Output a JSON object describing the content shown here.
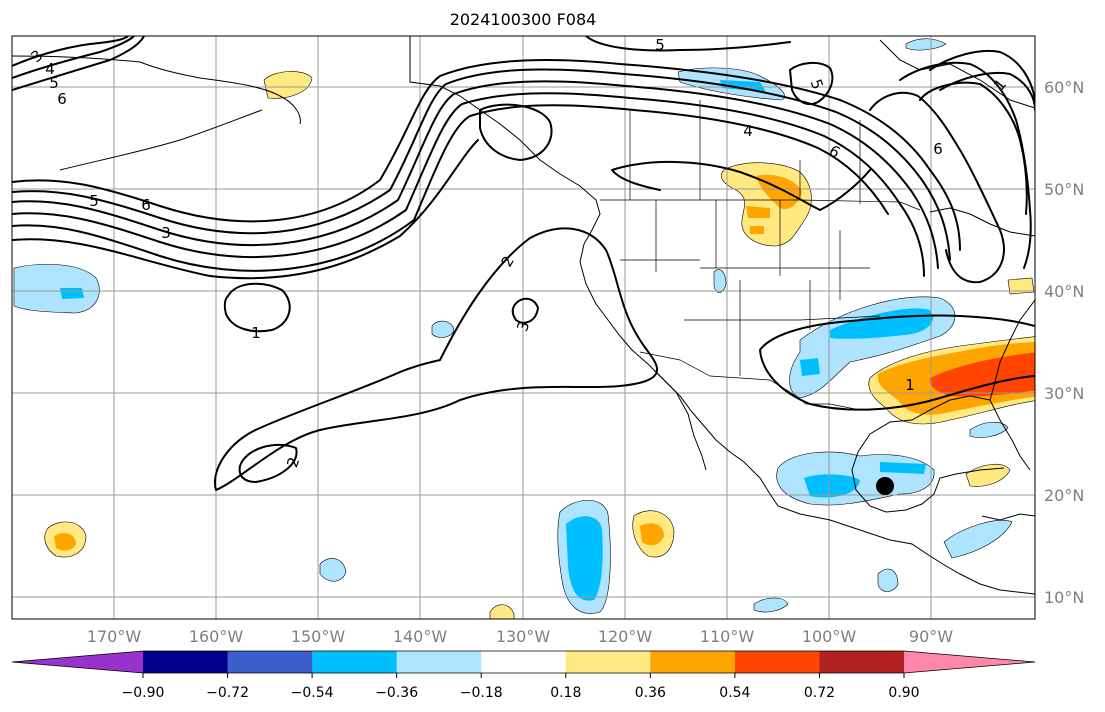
{
  "title": "2024100300 F084",
  "lat_labels": [
    "60°N",
    "50°N",
    "40°N",
    "30°N",
    "20°N",
    "10°N"
  ],
  "lon_labels": [
    "170°W",
    "160°W",
    "150°W",
    "140°W",
    "130°W",
    "120°W",
    "110°W",
    "100°W",
    "90°W"
  ],
  "colorbar": {
    "ticks": [
      "−0.90",
      "−0.72",
      "−0.54",
      "−0.36",
      "−0.18",
      "0.18",
      "0.36",
      "0.54",
      "0.72",
      "0.90"
    ],
    "colors": [
      "#9932cc",
      "#00008b",
      "#3a5fcd",
      "#00bfff",
      "#aee4ff",
      "#ffffff",
      "#ffe980",
      "#ffa500",
      "#ff4500",
      "#b22222",
      "#ff88aa"
    ]
  },
  "contour_labels": [
    "5",
    "4",
    "3",
    "1",
    "6",
    "3",
    "4",
    "5",
    "6",
    "1",
    "2",
    "3",
    "1",
    "2"
  ],
  "marker": "black-dot"
}
